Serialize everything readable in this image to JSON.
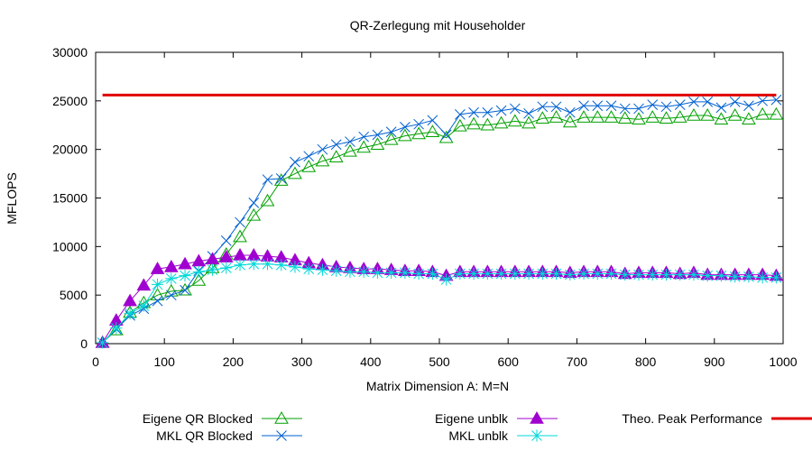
{
  "chart_data": {
    "type": "line",
    "title": "QR-Zerlegung mit Householder",
    "xlabel": "Matrix Dimension A: M=N",
    "ylabel": "MFLOPS",
    "xlim": [
      0,
      1000
    ],
    "ylim": [
      0,
      30000
    ],
    "xticks": [
      0,
      100,
      200,
      300,
      400,
      500,
      600,
      700,
      800,
      900,
      1000
    ],
    "yticks": [
      0,
      5000,
      10000,
      15000,
      20000,
      25000,
      30000
    ],
    "grid": false,
    "legend_position": "bottom",
    "x": [
      10,
      30,
      50,
      70,
      90,
      110,
      130,
      150,
      170,
      190,
      210,
      230,
      250,
      270,
      290,
      310,
      330,
      350,
      370,
      390,
      410,
      430,
      450,
      470,
      490,
      510,
      530,
      550,
      570,
      590,
      610,
      630,
      650,
      670,
      690,
      710,
      730,
      750,
      770,
      790,
      810,
      830,
      850,
      870,
      890,
      910,
      930,
      950,
      970,
      990
    ],
    "series": [
      {
        "name": "Eigene QR Blocked",
        "color": "#00a000",
        "marker": "triangle-open",
        "values": [
          100,
          1400,
          3200,
          4200,
          5000,
          5400,
          5500,
          6500,
          7800,
          9200,
          11000,
          13200,
          14700,
          16800,
          17500,
          18200,
          18800,
          19200,
          19800,
          20200,
          20500,
          21000,
          21400,
          21600,
          21800,
          21200,
          22400,
          22600,
          22500,
          22700,
          22900,
          22700,
          23200,
          23300,
          22800,
          23300,
          23300,
          23300,
          23200,
          23100,
          23300,
          23200,
          23300,
          23500,
          23500,
          23100,
          23500,
          23100,
          23600,
          23600
        ]
      },
      {
        "name": "MKL QR Blocked",
        "color": "#0060d0",
        "marker": "x",
        "values": [
          100,
          1500,
          2900,
          3600,
          4400,
          5000,
          5500,
          7500,
          9000,
          10600,
          12500,
          14500,
          16900,
          17000,
          18700,
          19300,
          20000,
          20500,
          20800,
          21300,
          21500,
          21800,
          22300,
          22600,
          23000,
          21500,
          23600,
          23800,
          23800,
          24000,
          24200,
          23700,
          24400,
          24400,
          23800,
          24500,
          24500,
          24500,
          24200,
          24200,
          24600,
          24400,
          24600,
          24900,
          24900,
          24300,
          24900,
          24500,
          25000,
          25100
        ]
      },
      {
        "name": "Eigene unblk",
        "color": "#a000d0",
        "marker": "triangle-filled",
        "values": [
          100,
          2400,
          4400,
          6000,
          7700,
          7900,
          8200,
          8500,
          8700,
          8900,
          9100,
          9100,
          9000,
          8900,
          8600,
          8300,
          8100,
          7900,
          7800,
          7700,
          7700,
          7600,
          7500,
          7500,
          7400,
          7000,
          7400,
          7400,
          7400,
          7400,
          7400,
          7400,
          7400,
          7400,
          7300,
          7400,
          7400,
          7400,
          7200,
          7300,
          7300,
          7300,
          7200,
          7300,
          7100,
          7100,
          7100,
          7100,
          7100,
          7000
        ]
      },
      {
        "name": "MKL unblk",
        "color": "#00d8d8",
        "marker": "asterisk",
        "values": [
          100,
          1600,
          3100,
          3900,
          6100,
          6700,
          7000,
          7400,
          7600,
          7800,
          8100,
          8200,
          8200,
          8100,
          7900,
          7700,
          7600,
          7500,
          7400,
          7400,
          7300,
          7300,
          7300,
          7200,
          7200,
          6600,
          7200,
          7200,
          7200,
          7200,
          7200,
          7200,
          7200,
          7200,
          7100,
          7200,
          7200,
          7200,
          7100,
          7100,
          7100,
          7100,
          7100,
          7100,
          7000,
          7000,
          6900,
          6900,
          6800,
          6800
        ]
      },
      {
        "name": "Theo. Peak Performance",
        "color": "#e00000",
        "marker": "none",
        "constant": 25600
      }
    ]
  }
}
